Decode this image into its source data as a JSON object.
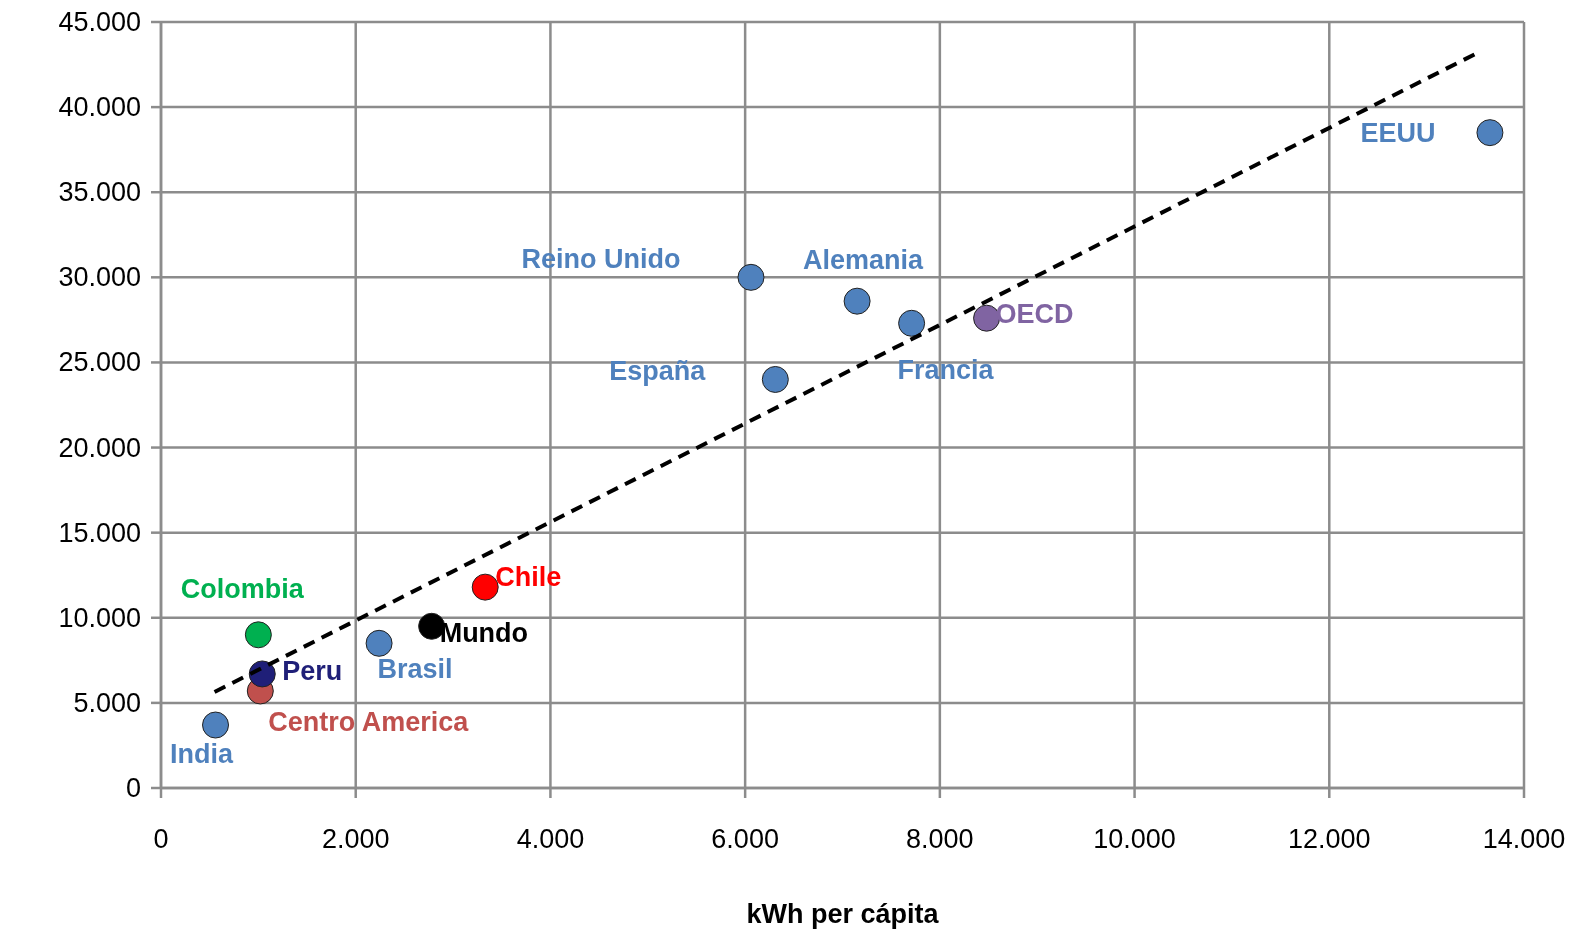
{
  "chart_data": {
    "type": "scatter",
    "xlabel": "kWh per cápita",
    "xlim": [
      0,
      14000
    ],
    "ylim": [
      0,
      45000
    ],
    "xticks": [
      0,
      {
        "value": 2000,
        "label": "2.000"
      },
      {
        "value": 4000,
        "label": "4.000"
      },
      {
        "value": 6000,
        "label": "6.000"
      },
      {
        "value": 8000,
        "label": "8.000"
      },
      {
        "value": 10000,
        "label": "10.000"
      },
      {
        "value": 12000,
        "label": "12.000"
      },
      {
        "value": 14000,
        "label": "14.000"
      }
    ],
    "yticks": [
      0,
      {
        "value": 5000,
        "label": "5.000"
      },
      {
        "value": 10000,
        "label": "10.000"
      },
      {
        "value": 15000,
        "label": "15.000"
      },
      {
        "value": 20000,
        "label": "20.000"
      },
      {
        "value": 25000,
        "label": "25.000"
      },
      {
        "value": 30000,
        "label": "30.000"
      },
      {
        "value": 35000,
        "label": "35.000"
      },
      {
        "value": 40000,
        "label": "40.000"
      },
      {
        "value": 45000,
        "label": "45.000"
      }
    ],
    "grid": true,
    "marker": "circle",
    "series": [
      {
        "name": "India",
        "color": "#4f81bd",
        "x": [
          560
        ],
        "values": [
          3700
        ]
      },
      {
        "name": "Centro America",
        "color": "#c0504d",
        "x": [
          1020
        ],
        "values": [
          5700
        ]
      },
      {
        "name": "Peru",
        "color": "#1f1f78",
        "x": [
          1040
        ],
        "values": [
          6700
        ]
      },
      {
        "name": "Colombia",
        "color": "#00b050",
        "x": [
          1000
        ],
        "values": [
          9000
        ]
      },
      {
        "name": "Brasil",
        "color": "#4f81bd",
        "x": [
          2240
        ],
        "values": [
          8500
        ]
      },
      {
        "name": "Mundo",
        "color": "#000000",
        "x": [
          2780
        ],
        "values": [
          9500
        ]
      },
      {
        "name": "Chile",
        "color": "#ff0000",
        "x": [
          3330
        ],
        "values": [
          11800
        ]
      },
      {
        "name": "Reino Unido",
        "color": "#4f81bd",
        "x": [
          6060
        ],
        "values": [
          30000
        ]
      },
      {
        "name": "España",
        "color": "#4f81bd",
        "x": [
          6310
        ],
        "values": [
          24000
        ]
      },
      {
        "name": "Alemania",
        "color": "#4f81bd",
        "x": [
          7150
        ],
        "values": [
          28600
        ]
      },
      {
        "name": "Francia",
        "color": "#4f81bd",
        "x": [
          7710
        ],
        "values": [
          27300
        ]
      },
      {
        "name": "OECD",
        "color": "#8064a2",
        "x": [
          8480
        ],
        "values": [
          27600
        ]
      },
      {
        "name": "EEUU",
        "color": "#4f81bd",
        "x": [
          13650
        ],
        "values": [
          38500
        ]
      },
      {
        "type": "line",
        "color": "#000000",
        "line_style": "dashed",
        "marker": "none",
        "x": [
          550,
          13520
        ],
        "values": [
          5640,
          43180
        ]
      }
    ]
  }
}
